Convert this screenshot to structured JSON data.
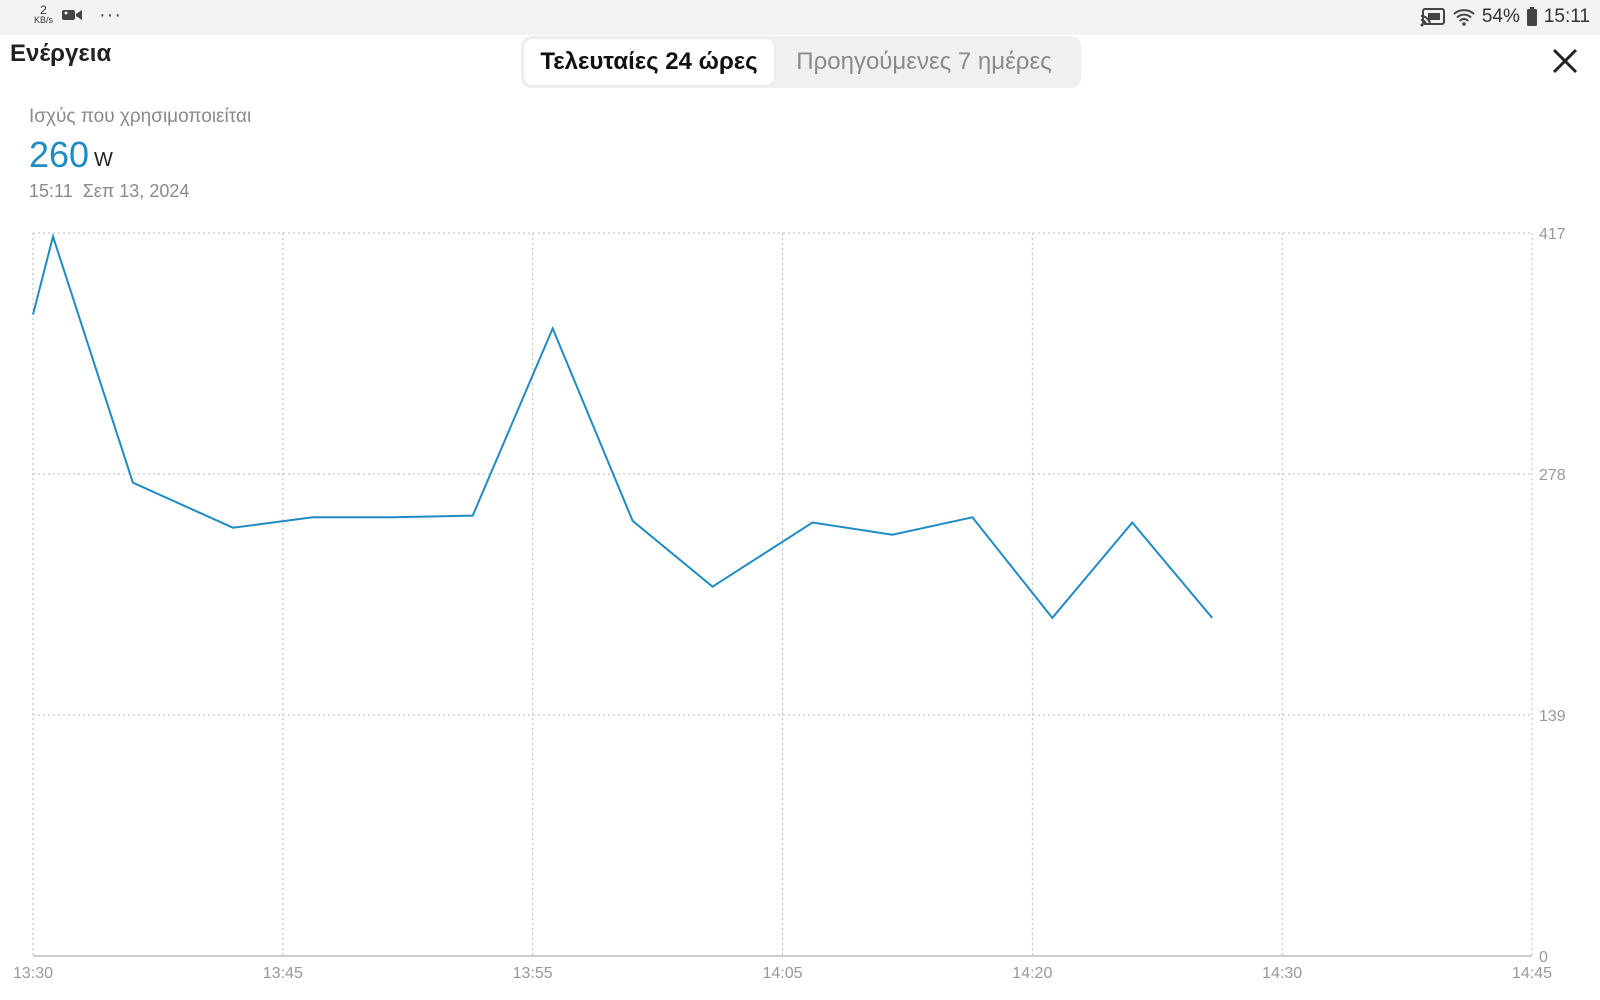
{
  "status_bar": {
    "net_speed_value": "2",
    "net_speed_unit": "KB/s",
    "more": "···",
    "battery": "54%",
    "time": "15:11"
  },
  "header": {
    "title": "Ενέργεια",
    "tabs": [
      {
        "label": "Τελευταίες 24 ώρες",
        "active": true
      },
      {
        "label": "Προηγούμενες 7 ημέρες",
        "active": false
      }
    ],
    "close_icon": "close-icon"
  },
  "metric": {
    "label": "Ισχύς που χρησιμοποιείται",
    "value": "260",
    "unit": "W",
    "time": "15:11",
    "date": "Σεπ 13, 2024"
  },
  "colors": {
    "accent": "#1e8bc3",
    "grid": "#bbbbbb",
    "muted_text": "#8a8a8a"
  },
  "chart_data": {
    "type": "line",
    "title": "",
    "xlabel": "",
    "ylabel": "",
    "x_tick_labels": [
      "13:30",
      "13:45",
      "13:55",
      "14:05",
      "14:20",
      "14:30",
      "14:45"
    ],
    "y_tick_labels": [
      "0",
      "139",
      "278",
      "417"
    ],
    "ylim": [
      0,
      417
    ],
    "grid": true,
    "series": [
      {
        "color": "#1e8bc3",
        "points": [
          {
            "x": "13:30",
            "y": 370
          },
          {
            "x": "13:31",
            "y": 415
          },
          {
            "x": "13:35",
            "y": 273
          },
          {
            "x": "13:40",
            "y": 247
          },
          {
            "x": "13:44",
            "y": 253
          },
          {
            "x": "13:48",
            "y": 253
          },
          {
            "x": "13:52",
            "y": 254
          },
          {
            "x": "13:56",
            "y": 362
          },
          {
            "x": "14:00",
            "y": 251
          },
          {
            "x": "14:04",
            "y": 213
          },
          {
            "x": "14:09",
            "y": 250
          },
          {
            "x": "14:13",
            "y": 243
          },
          {
            "x": "14:17",
            "y": 253
          },
          {
            "x": "14:21",
            "y": 195
          },
          {
            "x": "14:25",
            "y": 250
          },
          {
            "x": "14:29",
            "y": 195
          }
        ]
      }
    ]
  }
}
